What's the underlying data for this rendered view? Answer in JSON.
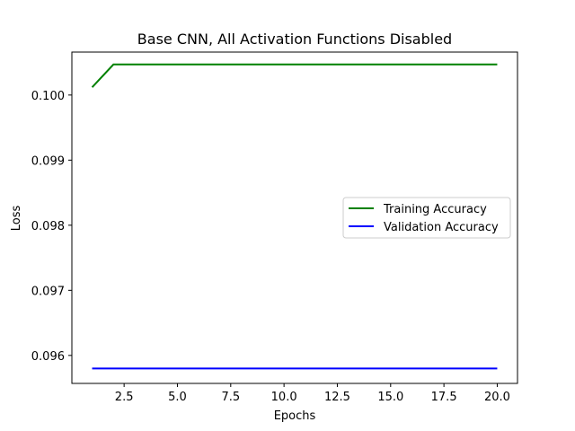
{
  "chart_data": {
    "type": "line",
    "title": "Base CNN, All Activation Functions Disabled",
    "xlabel": "Epochs",
    "ylabel": "Loss",
    "xlim": [
      0.05,
      20.95
    ],
    "ylim": [
      0.09557,
      0.10066
    ],
    "xticks": [
      2.5,
      5.0,
      7.5,
      10.0,
      12.5,
      15.0,
      17.5,
      20.0
    ],
    "xtick_labels": [
      "2.5",
      "5.0",
      "7.5",
      "10.0",
      "12.5",
      "15.0",
      "17.5",
      "20.0"
    ],
    "yticks": [
      0.096,
      0.097,
      0.098,
      0.099,
      0.1
    ],
    "ytick_labels": [
      "0.096",
      "0.097",
      "0.098",
      "0.099",
      "0.100"
    ],
    "grid": false,
    "legend_position": "center-right",
    "x": [
      1,
      2,
      3,
      4,
      5,
      6,
      7,
      8,
      9,
      10,
      11,
      12,
      13,
      14,
      15,
      16,
      17,
      18,
      19,
      20
    ],
    "series": [
      {
        "name": "Training Accuracy",
        "color": "#008000",
        "values": [
          0.10012,
          0.10047,
          0.10047,
          0.10047,
          0.10047,
          0.10047,
          0.10047,
          0.10047,
          0.10047,
          0.10047,
          0.10047,
          0.10047,
          0.10047,
          0.10047,
          0.10047,
          0.10047,
          0.10047,
          0.10047,
          0.10047,
          0.10047
        ]
      },
      {
        "name": "Validation Accuracy",
        "color": "#0000ff",
        "values": [
          0.0958,
          0.0958,
          0.0958,
          0.0958,
          0.0958,
          0.0958,
          0.0958,
          0.0958,
          0.0958,
          0.0958,
          0.0958,
          0.0958,
          0.0958,
          0.0958,
          0.0958,
          0.0958,
          0.0958,
          0.0958,
          0.0958,
          0.0958
        ]
      }
    ]
  }
}
